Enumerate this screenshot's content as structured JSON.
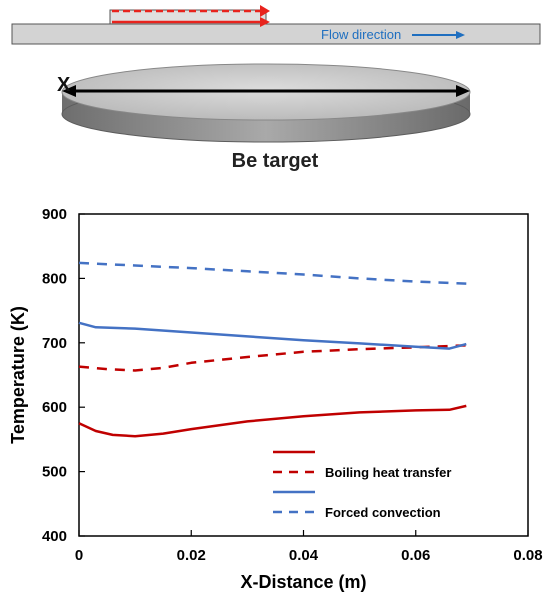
{
  "schematic": {
    "flow_label": "Flow direction",
    "axis_label": "X",
    "target_label": "Be target",
    "colors": {
      "flow_arrow": "#1f6fc0",
      "heater_arrow": "#e8231d",
      "plate": "#d3d3d3"
    }
  },
  "chart_data": {
    "type": "line",
    "title": "",
    "xlabel": "X-Distance (m)",
    "ylabel": "Temperature (K)",
    "xlim": [
      0,
      0.08
    ],
    "ylim": [
      400,
      900
    ],
    "xticks": [
      0,
      0.02,
      0.04,
      0.06,
      0.08
    ],
    "xtick_labels": [
      "0",
      "0.02",
      "0.04",
      "0.06",
      "0.08"
    ],
    "yticks": [
      400,
      500,
      600,
      700,
      800,
      900
    ],
    "ytick_labels": [
      "400",
      "500",
      "600",
      "700",
      "800",
      "900"
    ],
    "grid": false,
    "legend_position": "bottom-right",
    "legend": [
      {
        "label": "",
        "color": "#c00000",
        "dash": "solid"
      },
      {
        "label": "Boiling heat transfer",
        "color": "#c00000",
        "dash": "dashed"
      },
      {
        "label": "",
        "color": "#4472c4",
        "dash": "solid"
      },
      {
        "label": "Forced convection",
        "color": "#4472c4",
        "dash": "dashed"
      }
    ],
    "series": [
      {
        "color": "#c00000",
        "dash": "solid",
        "x": [
          0,
          0.003,
          0.006,
          0.01,
          0.015,
          0.02,
          0.03,
          0.04,
          0.05,
          0.06,
          0.066,
          0.069
        ],
        "y": [
          575,
          563,
          557,
          555,
          559,
          566,
          578,
          586,
          592,
          595,
          596,
          602
        ]
      },
      {
        "color": "#c00000",
        "dash": "dashed",
        "x": [
          0,
          0.005,
          0.01,
          0.015,
          0.02,
          0.03,
          0.04,
          0.05,
          0.06,
          0.069
        ],
        "y": [
          663,
          659,
          657,
          661,
          669,
          678,
          686,
          690,
          693,
          696
        ]
      },
      {
        "color": "#4472c4",
        "dash": "solid",
        "x": [
          0,
          0.003,
          0.01,
          0.02,
          0.03,
          0.04,
          0.05,
          0.06,
          0.066,
          0.069
        ],
        "y": [
          731,
          724,
          722,
          716,
          710,
          704,
          699,
          694,
          691,
          698
        ]
      },
      {
        "color": "#4472c4",
        "dash": "dashed",
        "x": [
          0,
          0.01,
          0.02,
          0.03,
          0.04,
          0.05,
          0.06,
          0.069
        ],
        "y": [
          824,
          820,
          816,
          811,
          806,
          800,
          795,
          792
        ]
      }
    ]
  }
}
